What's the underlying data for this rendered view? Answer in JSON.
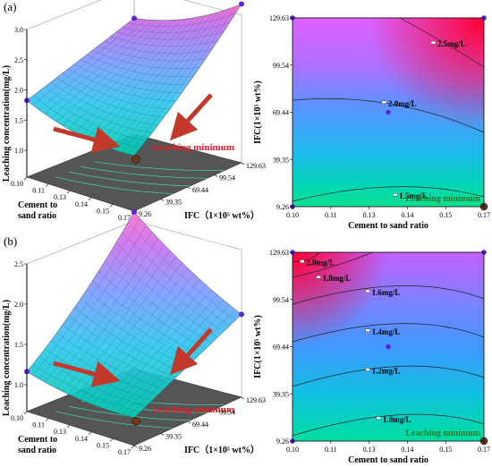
{
  "panels": [
    {
      "label": "(a)",
      "surface": {
        "zlabel": "Leaching concentration(mg/L)",
        "zticks": [
          "1.0",
          "1.5",
          "2.0",
          "2.5",
          "3.0"
        ],
        "xlabel_lines": [
          "Cement to",
          "sand ratio"
        ],
        "xticks": [
          "0.10",
          "0.11",
          "0.13",
          "0.14",
          "0.15",
          "0.17"
        ],
        "ylabel": "IFC（1×10⁵ wt%）",
        "yticks": [
          "9.26",
          "39.35",
          "69.44",
          "99.54",
          "129.63"
        ],
        "annotation": "Leaching minimum"
      },
      "contour": {
        "xlabel": "Cement to sand ratio",
        "ylabel": "IFC(1×10⁵ wt%)",
        "xticks": [
          "0.10",
          "0.11",
          "0.13",
          "0.14",
          "0.15",
          "0.17"
        ],
        "yticks": [
          "9.26",
          "39.35",
          "69.44",
          "99.54",
          "129.63"
        ],
        "levels": [
          {
            "label": "2.5mg/L",
            "x": 0.152,
            "y": 113
          },
          {
            "label": "2.0mg/L",
            "x": 0.134,
            "y": 75
          },
          {
            "label": "1.5mg/L",
            "x": 0.138,
            "y": 16
          }
        ],
        "annotation": "Leaching minimum"
      }
    },
    {
      "label": "(b)",
      "surface": {
        "zlabel": "Leaching concentration(mg/L)",
        "zticks": [
          "1.0",
          "1.5",
          "2.0",
          "2.5"
        ],
        "xlabel_lines": [
          "Cement to",
          "sand ratio"
        ],
        "xticks": [
          "0.10",
          "0.11",
          "0.13",
          "0.14",
          "0.15",
          "0.17"
        ],
        "ylabel": "IFC（1×10⁵ wt%）",
        "yticks": [
          "9.26",
          "39.35",
          "69.44",
          "99.54",
          "129.63"
        ],
        "annotation": "Leaching minimum"
      },
      "contour": {
        "xlabel": "Cement to sand ratio",
        "ylabel": "IFC(1×10⁵ wt%)",
        "xticks": [
          "0.10",
          "0.11",
          "0.13",
          "0.14",
          "0.15",
          "0.17"
        ],
        "yticks": [
          "9.26",
          "39.35",
          "69.44",
          "99.54",
          "129.63"
        ],
        "levels": [
          {
            "label": "2.0mg/L",
            "x": 0.104,
            "y": 123
          },
          {
            "label": "1.8mg/L",
            "x": 0.11,
            "y": 113
          },
          {
            "label": "1.6mg/L",
            "x": 0.128,
            "y": 104
          },
          {
            "label": "1.4mg/L",
            "x": 0.128,
            "y": 79
          },
          {
            "label": "1.2mg/L",
            "x": 0.128,
            "y": 54
          },
          {
            "label": "1.0mg/L",
            "x": 0.132,
            "y": 23
          }
        ],
        "annotation": "Leaching minimum"
      }
    }
  ],
  "chart_data": [
    {
      "type": "surface",
      "panel": "(a)",
      "xlabel": "Cement to sand ratio",
      "ylabel": "IFC (1×10⁵ wt%)",
      "zlabel": "Leaching concentration(mg/L)",
      "x_range": [
        0.1,
        0.17
      ],
      "y_range": [
        9.26,
        129.63
      ],
      "z_range": [
        1.0,
        3.0
      ],
      "corner_values": {
        "x0.10_y9.26": 1.7,
        "x0.17_y9.26": 1.35,
        "x0.10_y129.63": 2.35,
        "x0.17_y129.63": 2.85
      },
      "minimum": {
        "x": 0.17,
        "y": 9.26,
        "label": "Leaching minimum"
      },
      "colormap": [
        "#00c8a0",
        "#40c8ff",
        "#8080ff",
        "#e060ff",
        "#ff2040"
      ]
    },
    {
      "type": "contour",
      "panel": "(a)",
      "xlabel": "Cement to sand ratio",
      "ylabel": "IFC(1×10⁵ wt%)",
      "xlim": [
        0.1,
        0.17
      ],
      "ylim": [
        9.26,
        129.63
      ],
      "contour_levels": [
        1.5,
        2.0,
        2.5
      ],
      "minimum": {
        "x": 0.17,
        "y": 9.26,
        "label": "Leaching minimum"
      }
    },
    {
      "type": "surface",
      "panel": "(b)",
      "xlabel": "Cement to sand ratio",
      "ylabel": "IFC (1×10⁵ wt%)",
      "zlabel": "Leaching concentration(mg/L)",
      "x_range": [
        0.1,
        0.17
      ],
      "y_range": [
        9.26,
        129.63
      ],
      "z_range": [
        1.0,
        2.5
      ],
      "corner_values": {
        "x0.10_y9.26": 1.1,
        "x0.17_y9.26": 0.95,
        "x0.10_y129.63": 2.2,
        "x0.17_y129.63": 1.7
      },
      "minimum": {
        "x": 0.17,
        "y": 9.26,
        "label": "Leaching minimum"
      },
      "colormap": [
        "#00c8a0",
        "#40c8ff",
        "#8080ff",
        "#e060ff",
        "#ff2040"
      ]
    },
    {
      "type": "contour",
      "panel": "(b)",
      "xlabel": "Cement to sand ratio",
      "ylabel": "IFC(1×10⁵ wt%)",
      "xlim": [
        0.1,
        0.17
      ],
      "ylim": [
        9.26,
        129.63
      ],
      "contour_levels": [
        1.0,
        1.2,
        1.4,
        1.6,
        1.8,
        2.0
      ],
      "minimum": {
        "x": 0.17,
        "y": 9.26,
        "label": "Leaching minimum"
      }
    }
  ]
}
